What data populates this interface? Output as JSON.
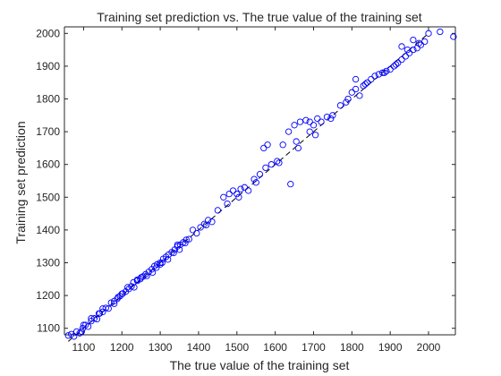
{
  "chart_data": {
    "type": "scatter",
    "title": "Training set prediction vs. The true value of the training set",
    "xlabel": "The true value of the training set",
    "ylabel": "Training set prediction",
    "xlim": [
      1050,
      2070
    ],
    "ylim": [
      1080,
      2020
    ],
    "xticks": [
      1100,
      1200,
      1300,
      1400,
      1500,
      1600,
      1700,
      1800,
      1900,
      2000
    ],
    "yticks": [
      1100,
      1200,
      1300,
      1400,
      1500,
      1600,
      1700,
      1800,
      1900,
      2000
    ],
    "grid": false,
    "legend": "none",
    "marker_color": "#0000ff",
    "reference_line_color": "#000000",
    "reference_line": {
      "x": [
        1060,
        2000
      ],
      "y": [
        1060,
        2000
      ]
    },
    "series": [
      {
        "x": [
          1060,
          1068,
          1075,
          1082,
          1090,
          1098,
          1105,
          1112,
          1120,
          1128,
          1135,
          1142,
          1150,
          1158,
          1165,
          1172,
          1180,
          1188,
          1195,
          1202,
          1210,
          1218,
          1225,
          1232,
          1240,
          1248,
          1255,
          1262,
          1270,
          1278,
          1285,
          1292,
          1300,
          1308,
          1315,
          1322,
          1330,
          1338,
          1345,
          1352,
          1360,
          1368,
          1375,
          1385,
          1395,
          1405,
          1415,
          1425,
          1435,
          1450,
          1465,
          1480,
          1490,
          1500,
          1510,
          1520,
          1530,
          1545,
          1560,
          1575,
          1590,
          1605,
          1620,
          1635,
          1650,
          1665,
          1680,
          1690,
          1700,
          1710,
          1720,
          1735,
          1750,
          1770,
          1790,
          1800,
          1810,
          1820,
          1830,
          1840,
          1850,
          1860,
          1870,
          1880,
          1890,
          1900,
          1910,
          1920,
          1930,
          1940,
          1950,
          1960,
          1970,
          1980,
          1990,
          2000,
          1100,
          1150,
          1200,
          1250,
          1300,
          1350,
          1120,
          1180,
          1230,
          1280,
          1320,
          1215,
          1265,
          1305,
          1345,
          1570,
          1580,
          1640,
          1655,
          1690,
          1930,
          1960,
          1705,
          1810,
          2030,
          2065,
          1095,
          1140,
          1190,
          1240,
          1290,
          1335,
          1365,
          1420,
          1475,
          1505,
          1550,
          1610,
          1660,
          1745,
          1785,
          1835,
          1885,
          1915,
          1945,
          1975
        ],
        "y": [
          1078,
          1082,
          1075,
          1090,
          1085,
          1100,
          1110,
          1105,
          1122,
          1130,
          1128,
          1145,
          1150,
          1162,
          1160,
          1178,
          1183,
          1190,
          1198,
          1206,
          1212,
          1220,
          1228,
          1225,
          1245,
          1250,
          1258,
          1265,
          1272,
          1280,
          1290,
          1295,
          1300,
          1312,
          1318,
          1325,
          1332,
          1340,
          1350,
          1355,
          1362,
          1370,
          1372,
          1400,
          1390,
          1408,
          1418,
          1430,
          1425,
          1460,
          1500,
          1510,
          1520,
          1510,
          1525,
          1530,
          1520,
          1555,
          1570,
          1590,
          1600,
          1610,
          1660,
          1700,
          1720,
          1730,
          1735,
          1730,
          1720,
          1740,
          1730,
          1745,
          1750,
          1780,
          1800,
          1820,
          1830,
          1810,
          1840,
          1850,
          1860,
          1870,
          1875,
          1880,
          1885,
          1890,
          1900,
          1910,
          1920,
          1930,
          1940,
          1950,
          1955,
          1965,
          1975,
          2000,
          1110,
          1160,
          1205,
          1255,
          1295,
          1340,
          1130,
          1175,
          1240,
          1270,
          1310,
          1225,
          1260,
          1300,
          1355,
          1650,
          1660,
          1540,
          1670,
          1700,
          1960,
          1980,
          1690,
          1860,
          2005,
          1990,
          1090,
          1145,
          1195,
          1248,
          1285,
          1330,
          1360,
          1415,
          1480,
          1500,
          1545,
          1605,
          1650,
          1740,
          1790,
          1845,
          1880,
          1905,
          1950,
          1970
        ]
      }
    ]
  }
}
